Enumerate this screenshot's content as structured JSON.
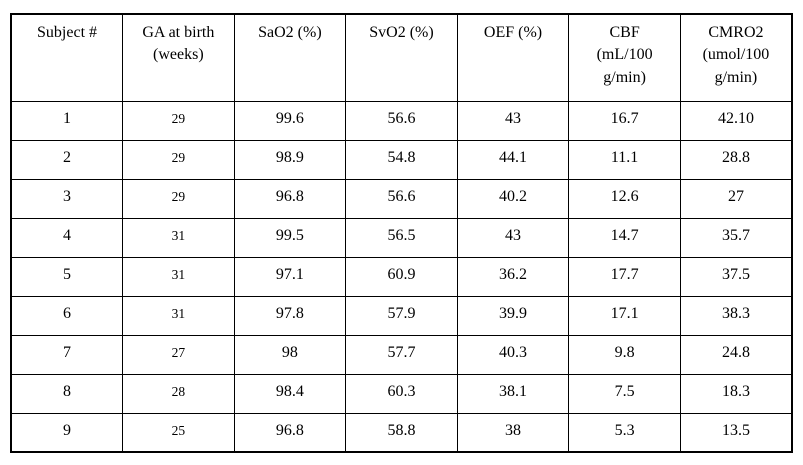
{
  "table": {
    "columns": [
      "Subject #",
      "GA at birth\n(weeks)",
      "SaO2 (%)",
      "SvO2 (%)",
      "OEF (%)",
      "CBF\n(mL/100\ng/min)",
      "CMRO2\n(umol/100\ng/min)"
    ],
    "rows": [
      [
        "1",
        "29",
        "99.6",
        "56.6",
        "43",
        "16.7",
        "42.10"
      ],
      [
        "2",
        "29",
        "98.9",
        "54.8",
        "44.1",
        "11.1",
        "28.8"
      ],
      [
        "3",
        "29",
        "96.8",
        "56.6",
        "40.2",
        "12.6",
        "27"
      ],
      [
        "4",
        "31",
        "99.5",
        "56.5",
        "43",
        "14.7",
        "35.7"
      ],
      [
        "5",
        "31",
        "97.1",
        "60.9",
        "36.2",
        "17.7",
        "37.5"
      ],
      [
        "6",
        "31",
        "97.8",
        "57.9",
        "39.9",
        "17.1",
        "38.3"
      ],
      [
        "7",
        "27",
        "98",
        "57.7",
        "40.3",
        "9.8",
        "24.8"
      ],
      [
        "8",
        "28",
        "98.4",
        "60.3",
        "38.1",
        "7.5",
        "18.3"
      ],
      [
        "9",
        "25",
        "96.8",
        "58.8",
        "38",
        "5.3",
        "13.5"
      ]
    ]
  },
  "chart_data": {
    "type": "table",
    "title": "",
    "columns": [
      "Subject #",
      "GA at birth (weeks)",
      "SaO2 (%)",
      "SvO2 (%)",
      "OEF (%)",
      "CBF (mL/100 g/min)",
      "CMRO2 (umol/100 g/min)"
    ],
    "rows": [
      [
        1,
        29,
        99.6,
        56.6,
        43,
        16.7,
        42.1
      ],
      [
        2,
        29,
        98.9,
        54.8,
        44.1,
        11.1,
        28.8
      ],
      [
        3,
        29,
        96.8,
        56.6,
        40.2,
        12.6,
        27
      ],
      [
        4,
        31,
        99.5,
        56.5,
        43,
        14.7,
        35.7
      ],
      [
        5,
        31,
        97.1,
        60.9,
        36.2,
        17.7,
        37.5
      ],
      [
        6,
        31,
        97.8,
        57.9,
        39.9,
        17.1,
        38.3
      ],
      [
        7,
        27,
        98,
        57.7,
        40.3,
        9.8,
        24.8
      ],
      [
        8,
        28,
        98.4,
        60.3,
        38.1,
        7.5,
        18.3
      ],
      [
        9,
        25,
        96.8,
        58.8,
        38,
        5.3,
        13.5
      ]
    ]
  },
  "colors": {
    "border": "#000000",
    "background": "#ffffff",
    "text": "#000000"
  }
}
